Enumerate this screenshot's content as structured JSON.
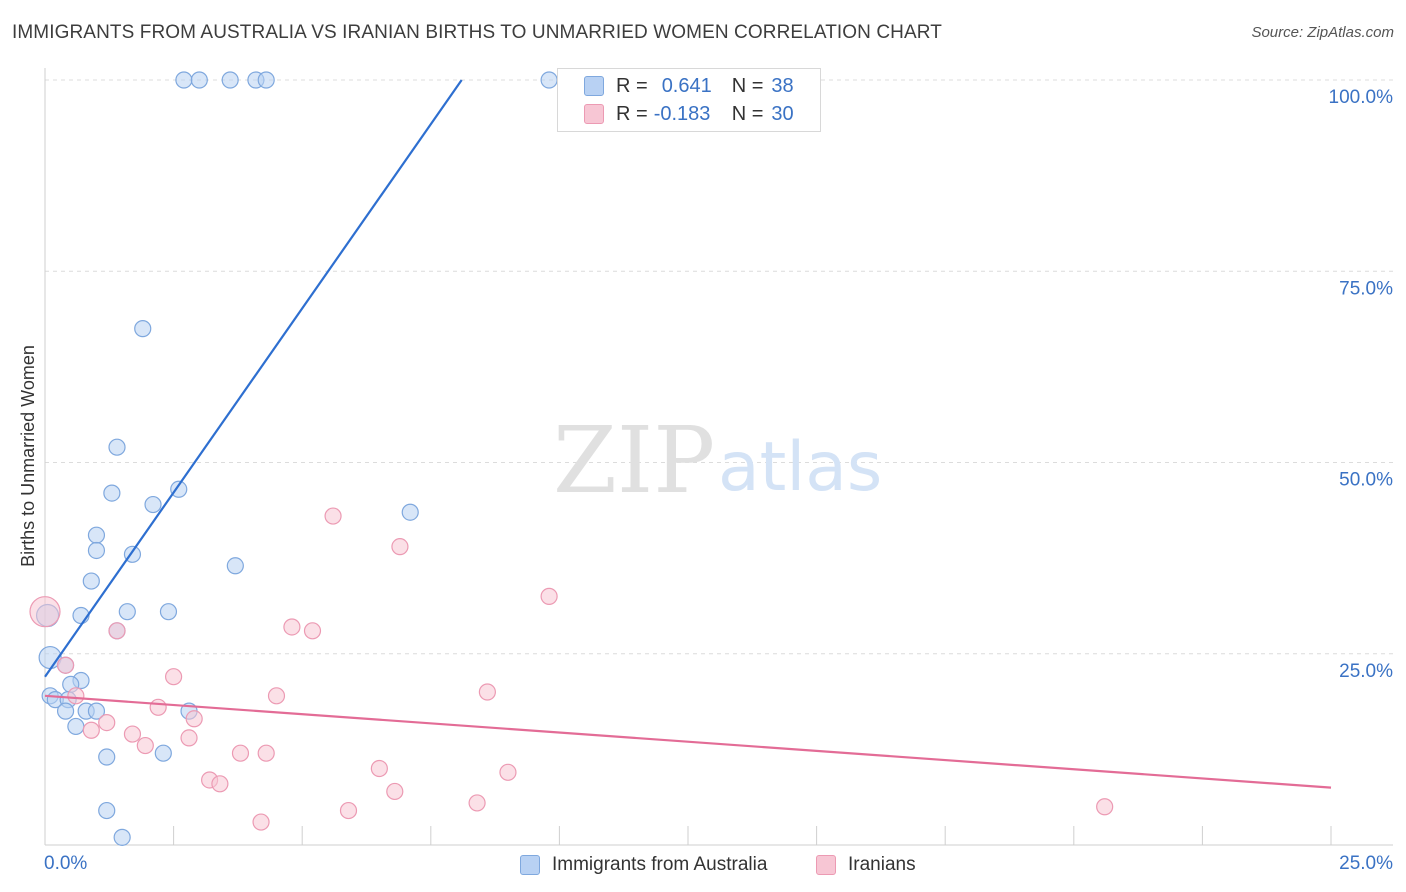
{
  "title": "IMMIGRANTS FROM AUSTRALIA VS IRANIAN BIRTHS TO UNMARRIED WOMEN CORRELATION CHART",
  "source": "Source: ZipAtlas.com",
  "watermark": {
    "zip": "ZIP",
    "atlas": "atlas"
  },
  "legend": {
    "r_label": "R =",
    "n_label": "N =",
    "series": [
      {
        "r": "0.641",
        "n": "38"
      },
      {
        "r": "-0.183",
        "n": "30"
      }
    ]
  },
  "colors": {
    "blue_fill": "#b8d1f3",
    "blue_stroke": "#7fa8de",
    "blue_line": "#2e6fd0",
    "pink_fill": "#f7c6d4",
    "pink_stroke": "#ec9ab3",
    "pink_line": "#e36c96",
    "axis_label": "#3a72c4",
    "grid": "#dcdcdc"
  },
  "chart_data": {
    "type": "scatter",
    "title": "IMMIGRANTS FROM AUSTRALIA VS IRANIAN BIRTHS TO UNMARRIED WOMEN CORRELATION CHART",
    "xlabel": "",
    "ylabel": "Births to Unmarried Women",
    "xlim": [
      0,
      25
    ],
    "ylim": [
      0,
      100
    ],
    "x_tick_labels": [
      "0.0%",
      "25.0%"
    ],
    "y_tick_labels": [
      "25.0%",
      "50.0%",
      "75.0%",
      "100.0%"
    ],
    "y_ticks": [
      25,
      50,
      75,
      100
    ],
    "series": [
      {
        "name": "Immigrants from Australia",
        "color": "blue",
        "trend": {
          "x": [
            0.0,
            8.1
          ],
          "y": [
            22,
            100
          ]
        },
        "points": [
          {
            "x": 2.7,
            "y": 100
          },
          {
            "x": 3.0,
            "y": 100
          },
          {
            "x": 3.6,
            "y": 100
          },
          {
            "x": 4.1,
            "y": 100
          },
          {
            "x": 4.3,
            "y": 100
          },
          {
            "x": 9.8,
            "y": 100
          },
          {
            "x": 1.9,
            "y": 67.5
          },
          {
            "x": 1.4,
            "y": 52
          },
          {
            "x": 1.3,
            "y": 46
          },
          {
            "x": 2.6,
            "y": 46.5
          },
          {
            "x": 2.1,
            "y": 44.5
          },
          {
            "x": 7.1,
            "y": 43.5
          },
          {
            "x": 1.0,
            "y": 40.5
          },
          {
            "x": 1.0,
            "y": 38.5
          },
          {
            "x": 1.7,
            "y": 38
          },
          {
            "x": 3.7,
            "y": 36.5
          },
          {
            "x": 0.9,
            "y": 34.5
          },
          {
            "x": 1.6,
            "y": 30.5
          },
          {
            "x": 2.4,
            "y": 30.5
          },
          {
            "x": 0.7,
            "y": 30
          },
          {
            "x": 0.05,
            "y": 30
          },
          {
            "x": 1.4,
            "y": 28
          },
          {
            "x": 0.1,
            "y": 24.5
          },
          {
            "x": 0.4,
            "y": 23.5
          },
          {
            "x": 0.7,
            "y": 21.5
          },
          {
            "x": 0.5,
            "y": 21
          },
          {
            "x": 0.1,
            "y": 19.5
          },
          {
            "x": 0.2,
            "y": 19
          },
          {
            "x": 0.45,
            "y": 19
          },
          {
            "x": 0.4,
            "y": 17.5
          },
          {
            "x": 0.8,
            "y": 17.5
          },
          {
            "x": 1.0,
            "y": 17.5
          },
          {
            "x": 2.8,
            "y": 17.5
          },
          {
            "x": 0.6,
            "y": 15.5
          },
          {
            "x": 1.2,
            "y": 11.5
          },
          {
            "x": 2.3,
            "y": 12
          },
          {
            "x": 1.2,
            "y": 4.5
          },
          {
            "x": 1.5,
            "y": 1
          }
        ]
      },
      {
        "name": "Iranians",
        "color": "pink",
        "trend": {
          "x": [
            0.0,
            25.0
          ],
          "y": [
            19.5,
            7.5
          ]
        },
        "points": [
          {
            "x": 0.0,
            "y": 30.5
          },
          {
            "x": 0.4,
            "y": 23.5
          },
          {
            "x": 0.6,
            "y": 19.5
          },
          {
            "x": 0.9,
            "y": 15
          },
          {
            "x": 1.2,
            "y": 16
          },
          {
            "x": 1.4,
            "y": 28
          },
          {
            "x": 1.7,
            "y": 14.5
          },
          {
            "x": 1.95,
            "y": 13
          },
          {
            "x": 2.2,
            "y": 18
          },
          {
            "x": 2.5,
            "y": 22
          },
          {
            "x": 2.8,
            "y": 14
          },
          {
            "x": 2.9,
            "y": 16.5
          },
          {
            "x": 3.2,
            "y": 8.5
          },
          {
            "x": 3.4,
            "y": 8
          },
          {
            "x": 3.8,
            "y": 12
          },
          {
            "x": 4.2,
            "y": 3
          },
          {
            "x": 4.3,
            "y": 12
          },
          {
            "x": 4.5,
            "y": 19.5
          },
          {
            "x": 4.8,
            "y": 28.5
          },
          {
            "x": 5.2,
            "y": 28
          },
          {
            "x": 5.6,
            "y": 43
          },
          {
            "x": 5.9,
            "y": 4.5
          },
          {
            "x": 6.5,
            "y": 10
          },
          {
            "x": 6.8,
            "y": 7
          },
          {
            "x": 6.9,
            "y": 39
          },
          {
            "x": 8.4,
            "y": 5.5
          },
          {
            "x": 8.6,
            "y": 20
          },
          {
            "x": 9.0,
            "y": 9.5
          },
          {
            "x": 9.8,
            "y": 32.5
          },
          {
            "x": 20.6,
            "y": 5
          }
        ]
      }
    ]
  }
}
